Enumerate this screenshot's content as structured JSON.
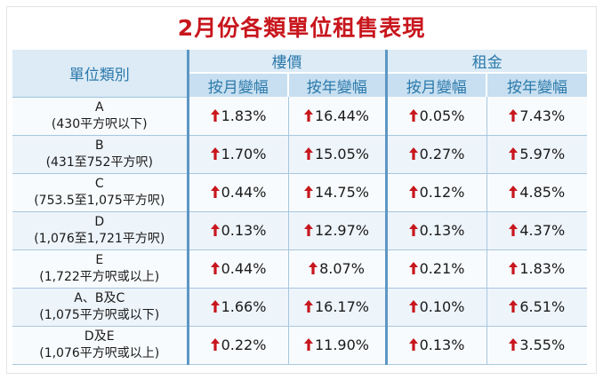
{
  "title": "2月份各類單位租售表現",
  "headers": {
    "unit_type": "單位類別",
    "price_group": "樓價",
    "rent_group": "租金",
    "price_mom": "按月變幅",
    "price_yoy": "按年變幅",
    "rent_mom": "按月變幅",
    "rent_yoy": "按年變幅"
  },
  "colors": {
    "accent_red": "#c8161d",
    "header_blue": "#2c79ab"
  },
  "rows": [
    {
      "unit": "A",
      "size": "(430平方呎以下)",
      "price_mom": "1.83%",
      "price_yoy": "16.44%",
      "rent_mom": "0.05%",
      "rent_yoy": "7.43%"
    },
    {
      "unit": "B",
      "size": "(431至752平方呎)",
      "price_mom": "1.70%",
      "price_yoy": "15.05%",
      "rent_mom": "0.27%",
      "rent_yoy": "5.97%"
    },
    {
      "unit": "C",
      "size": "(753.5至1,075平方呎)",
      "price_mom": "0.44%",
      "price_yoy": "14.75%",
      "rent_mom": "0.12%",
      "rent_yoy": "4.85%"
    },
    {
      "unit": "D",
      "size": "(1,076至1,721平方呎)",
      "price_mom": "0.13%",
      "price_yoy": "12.97%",
      "rent_mom": "0.13%",
      "rent_yoy": "4.37%"
    },
    {
      "unit": "E",
      "size": "(1,722平方呎或以上)",
      "price_mom": "0.44%",
      "price_yoy": "8.07%",
      "rent_mom": "0.21%",
      "rent_yoy": "1.83%"
    },
    {
      "unit": "A、B及C",
      "size": "(1,075平方呎或以下)",
      "price_mom": "1.66%",
      "price_yoy": "16.17%",
      "rent_mom": "0.10%",
      "rent_yoy": "6.51%"
    },
    {
      "unit": "D及E",
      "size": "(1,076平方呎或以上)",
      "price_mom": "0.22%",
      "price_yoy": "11.90%",
      "rent_mom": "0.13%",
      "rent_yoy": "3.55%"
    }
  ]
}
